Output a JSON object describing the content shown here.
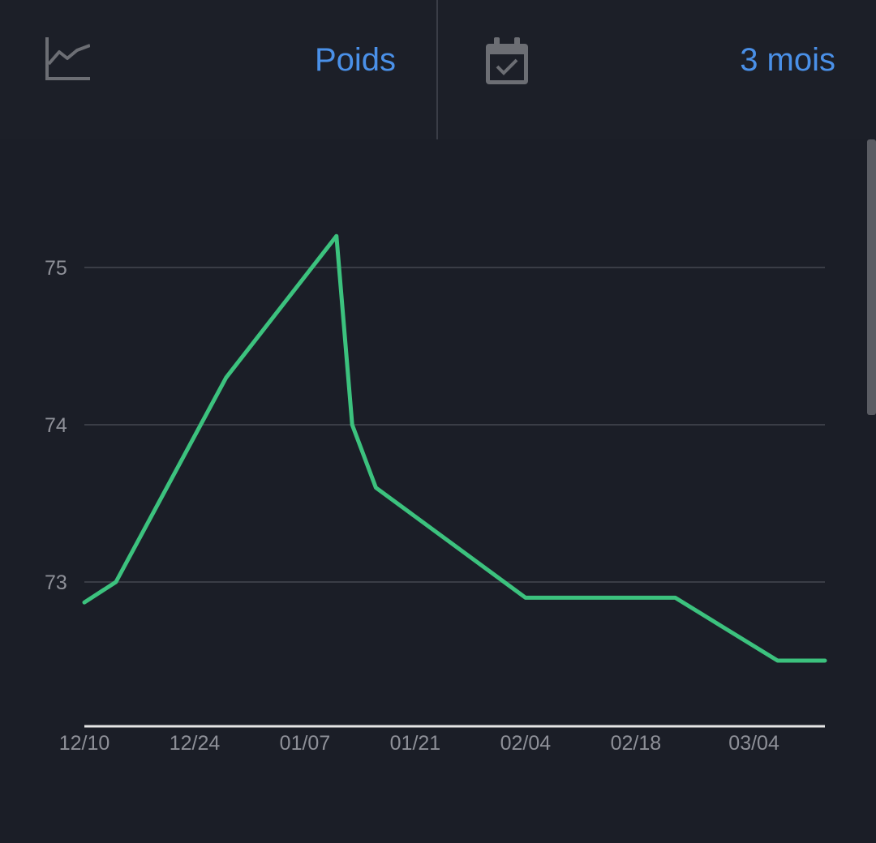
{
  "header": {
    "metric": {
      "label": "Poids",
      "icon": "line-chart-icon"
    },
    "period": {
      "label": "3 mois",
      "icon": "calendar-check-icon"
    }
  },
  "colors": {
    "accent": "#4a90e8",
    "line": "#3cc27e",
    "grid": "#3a3d46",
    "background": "#1c1f28",
    "axis": "#e6e6e6",
    "tick_text": "#8e9098"
  },
  "chart_data": {
    "type": "line",
    "grid": true,
    "ylim": [
      72.0,
      75.8
    ],
    "yticks": [
      73,
      74,
      75
    ],
    "xlim": [
      "2023-12-10",
      "2024-03-13"
    ],
    "xticks": [
      {
        "date": "2023-12-10",
        "label": "12/10"
      },
      {
        "date": "2023-12-24",
        "label": "12/24"
      },
      {
        "date": "2024-01-07",
        "label": "01/07"
      },
      {
        "date": "2024-01-21",
        "label": "01/21"
      },
      {
        "date": "2024-02-04",
        "label": "02/04"
      },
      {
        "date": "2024-02-18",
        "label": "02/18"
      },
      {
        "date": "2024-03-04",
        "label": "03/04"
      }
    ],
    "series": [
      {
        "points": [
          {
            "x": "2023-12-10",
            "y": 72.87
          },
          {
            "x": "2023-12-14",
            "y": 73.0
          },
          {
            "x": "2023-12-28",
            "y": 74.3
          },
          {
            "x": "2024-01-11",
            "y": 75.2
          },
          {
            "x": "2024-01-13",
            "y": 74.0
          },
          {
            "x": "2024-01-16",
            "y": 73.6
          },
          {
            "x": "2024-02-04",
            "y": 72.9
          },
          {
            "x": "2024-02-23",
            "y": 72.9
          },
          {
            "x": "2024-03-07",
            "y": 72.5
          },
          {
            "x": "2024-03-13",
            "y": 72.5
          }
        ]
      }
    ]
  }
}
